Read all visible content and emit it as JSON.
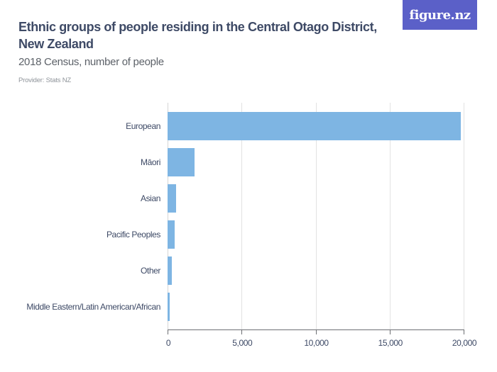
{
  "header": {
    "title": "Ethnic groups of people residing in the Central Otago District, New Zealand",
    "subtitle": "2018 Census, number of people",
    "provider": "Provider: Stats NZ",
    "logo_text": "figure.nz"
  },
  "colors": {
    "bar": "#7eb5e3",
    "title": "#3e4a66",
    "logo_bg": "#5b60c8"
  },
  "axis": {
    "ticks": [
      "0",
      "5,000",
      "10,000",
      "15,000",
      "20,000"
    ]
  },
  "categories": [
    "European",
    "Māori",
    "Asian",
    "Pacific Peoples",
    "Other",
    "Middle Eastern/Latin American/African"
  ],
  "chart_data": {
    "type": "bar",
    "orientation": "horizontal",
    "title": "Ethnic groups of people residing in the Central Otago District, New Zealand",
    "subtitle": "2018 Census, number of people",
    "categories": [
      "European",
      "Māori",
      "Asian",
      "Pacific Peoples",
      "Other",
      "Middle Eastern/Latin American/African"
    ],
    "values": [
      19800,
      1800,
      575,
      490,
      290,
      130
    ],
    "xlabel": "",
    "ylabel": "",
    "xlim": [
      0,
      20000
    ],
    "xticks": [
      0,
      5000,
      10000,
      15000,
      20000
    ],
    "grid": true,
    "legend": null,
    "source": "Provider: Stats NZ"
  }
}
